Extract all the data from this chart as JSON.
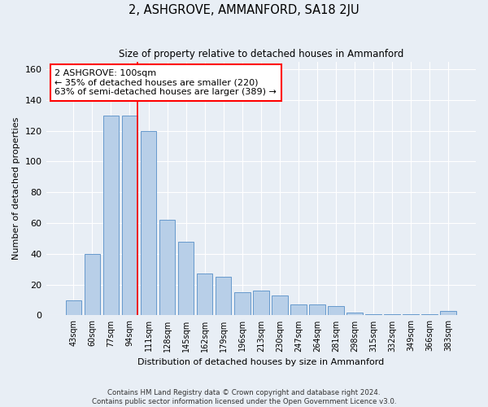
{
  "title": "2, ASHGROVE, AMMANFORD, SA18 2JU",
  "subtitle": "Size of property relative to detached houses in Ammanford",
  "xlabel": "Distribution of detached houses by size in Ammanford",
  "ylabel": "Number of detached properties",
  "categories": [
    "43sqm",
    "60sqm",
    "77sqm",
    "94sqm",
    "111sqm",
    "128sqm",
    "145sqm",
    "162sqm",
    "179sqm",
    "196sqm",
    "213sqm",
    "230sqm",
    "247sqm",
    "264sqm",
    "281sqm",
    "298sqm",
    "315sqm",
    "332sqm",
    "349sqm",
    "366sqm",
    "383sqm"
  ],
  "values": [
    10,
    40,
    130,
    130,
    120,
    62,
    48,
    27,
    25,
    15,
    16,
    13,
    7,
    7,
    6,
    2,
    1,
    1,
    1,
    1,
    3
  ],
  "bar_color": "#b8cfe8",
  "bar_edge_color": "#6699cc",
  "redline_index": 3,
  "annotation_text": "2 ASHGROVE: 100sqm\n← 35% of detached houses are smaller (220)\n63% of semi-detached houses are larger (389) →",
  "annotation_box_color": "white",
  "annotation_box_edge_color": "red",
  "background_color": "#e8eef5",
  "plot_bg_color": "#e8eef5",
  "footer_line1": "Contains HM Land Registry data © Crown copyright and database right 2024.",
  "footer_line2": "Contains public sector information licensed under the Open Government Licence v3.0.",
  "ylim": [
    0,
    165
  ],
  "yticks": [
    0,
    20,
    40,
    60,
    80,
    100,
    120,
    140,
    160
  ]
}
